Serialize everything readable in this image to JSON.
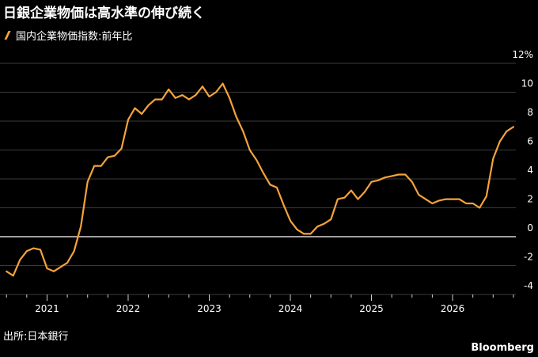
{
  "title": "日銀企業物価は高水準の伸び続く",
  "source": "出所:日本銀行",
  "brand": "Bloomberg",
  "colors": {
    "line": "#f5a33a",
    "grid": "#3a3a3a",
    "zero": "#ffffff",
    "text": "#ffffff"
  },
  "chart_data": {
    "type": "line",
    "title": "日銀企業物価は高水準の伸び続く",
    "ylim": [
      -4,
      12
    ],
    "y_ticks": [
      -4,
      -2,
      0,
      2,
      4,
      6,
      8,
      10,
      12
    ],
    "y_tick_labels": [
      "-4",
      "-2",
      "0",
      "2",
      "4",
      "6",
      "8",
      "10",
      "12%"
    ],
    "x_ticks": [
      2021,
      2022,
      2023,
      2024,
      2025,
      2026
    ],
    "x_tick_labels": [
      "2021",
      "2022",
      "2023",
      "2024",
      "2025",
      "2026"
    ],
    "grid": true,
    "legend": "top-left",
    "series": [
      {
        "name": "国内企業物価指数:前年比",
        "x": [
          2020.5,
          2020.583,
          2020.667,
          2020.75,
          2020.833,
          2020.917,
          2021.0,
          2021.083,
          2021.167,
          2021.25,
          2021.333,
          2021.417,
          2021.5,
          2021.583,
          2021.667,
          2021.75,
          2021.833,
          2021.917,
          2022.0,
          2022.083,
          2022.167,
          2022.25,
          2022.333,
          2022.417,
          2022.5,
          2022.583,
          2022.667,
          2022.75,
          2022.833,
          2022.917,
          2023.0,
          2023.083,
          2023.167,
          2023.25,
          2023.333,
          2023.417,
          2023.5,
          2023.583,
          2023.667,
          2023.75,
          2023.833,
          2023.917,
          2024.0,
          2024.083,
          2024.167,
          2024.25,
          2024.333,
          2024.417,
          2024.5,
          2024.583,
          2024.667,
          2024.75,
          2024.833,
          2024.917,
          2025.0,
          2025.083,
          2025.167,
          2025.25,
          2025.333,
          2025.417,
          2025.5,
          2025.583,
          2025.667,
          2025.75,
          2025.833,
          2025.917,
          2026.0,
          2026.083,
          2026.167,
          2026.25,
          2026.333,
          2026.417,
          2026.5,
          2026.583,
          2026.667,
          2026.75
        ],
        "values": [
          -2.4,
          -2.7,
          -1.6,
          -1.0,
          -0.8,
          -0.9,
          -2.2,
          -2.4,
          -2.1,
          -1.8,
          -1.0,
          0.7,
          3.8,
          4.9,
          4.9,
          5.5,
          5.6,
          6.1,
          8.1,
          8.9,
          8.5,
          9.1,
          9.5,
          9.5,
          10.2,
          9.6,
          9.8,
          9.5,
          9.8,
          10.4,
          9.7,
          10.0,
          10.6,
          9.6,
          8.3,
          7.3,
          6.0,
          5.3,
          4.4,
          3.6,
          3.4,
          2.2,
          1.1,
          0.5,
          0.2,
          0.2,
          0.7,
          0.9,
          1.2,
          2.6,
          2.7,
          3.2,
          2.6,
          3.1,
          3.8,
          3.9,
          4.1,
          4.2,
          4.3,
          4.3,
          3.8,
          2.9,
          2.6,
          2.3,
          2.5,
          2.6,
          2.6,
          2.6,
          2.3,
          2.3,
          2.0,
          2.8,
          5.4,
          6.6,
          7.3,
          7.6
        ]
      }
    ]
  }
}
